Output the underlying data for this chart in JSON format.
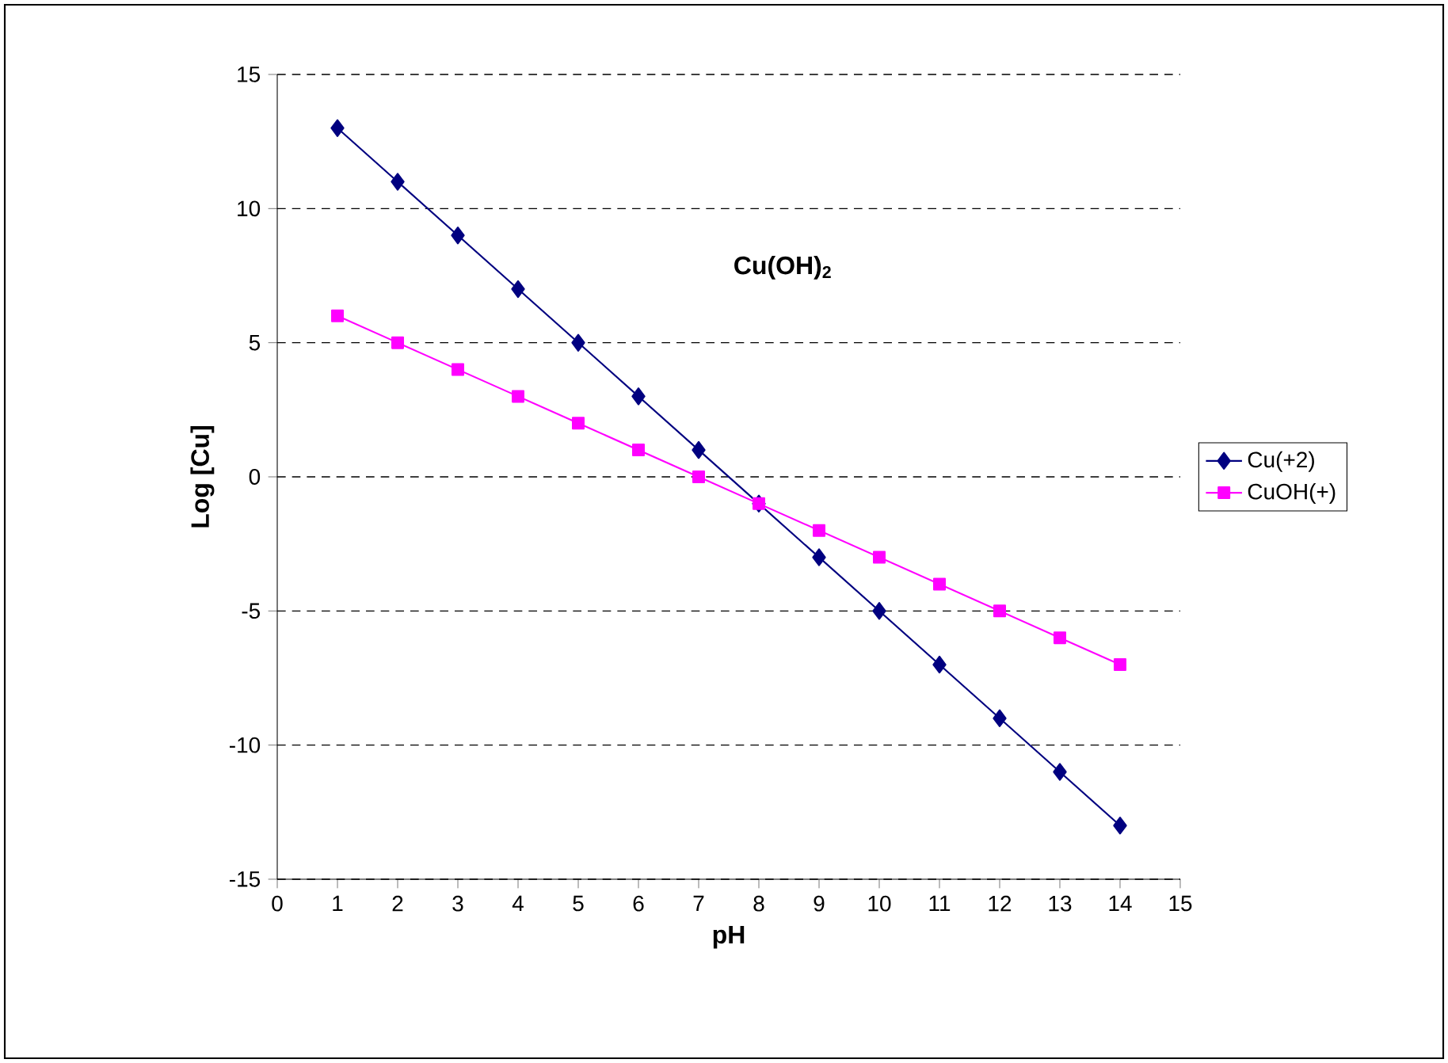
{
  "chart_data": {
    "type": "line",
    "xlabel": "pH",
    "ylabel": "Log [Cu]",
    "annotations": [
      "Cu(OH)$_{2}$"
    ],
    "x": [
      1,
      2,
      3,
      4,
      5,
      6,
      7,
      8,
      9,
      10,
      11,
      12,
      13,
      14
    ],
    "series": [
      {
        "name": "Cu(+2)",
        "color": "#000080",
        "marker": "diamond",
        "values": [
          13,
          11,
          9,
          7,
          5,
          3,
          1,
          -1,
          -3,
          -5,
          -7,
          -9,
          -11,
          -13
        ]
      },
      {
        "name": "CuOH(+)",
        "color": "#ff00ff",
        "marker": "square",
        "values": [
          6,
          5,
          4,
          3,
          2,
          1,
          0,
          -1,
          -2,
          -3,
          -4,
          -5,
          -6,
          -7
        ]
      }
    ],
    "xlim": [
      0,
      15
    ],
    "ylim": [
      -15,
      15
    ],
    "xticks": [
      0,
      1,
      2,
      3,
      4,
      5,
      6,
      7,
      8,
      9,
      10,
      11,
      12,
      13,
      14,
      15
    ],
    "yticks": [
      -15,
      -10,
      -5,
      0,
      5,
      10,
      15
    ],
    "grid": "y",
    "legend": "right",
    "line_style": "solid"
  }
}
